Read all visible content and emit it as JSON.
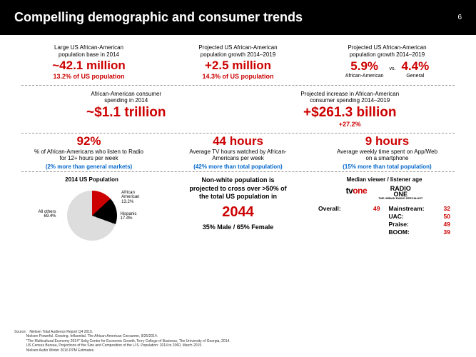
{
  "header": {
    "title": "Compelling demographic and consumer trends",
    "page": "6"
  },
  "row1": [
    {
      "lbl": "Large US African-American\npopulation base in 2014",
      "big": "~42.1 million",
      "sub": "13.2% of US population"
    },
    {
      "lbl": "Projected US African-American\npopulation growth 2014–2019",
      "big": "+2.5 million",
      "sub": "14.3% of US population"
    },
    {
      "lbl": "Projected US African-American\npopulation growth 2014–2019"
    }
  ],
  "growth_compare": {
    "left": {
      "big": "5.9%",
      "sub": "African-American"
    },
    "vs": "vs.",
    "right": {
      "big": "4.4%",
      "sub": "General"
    }
  },
  "row2": [
    {
      "lbl": "African-American consumer\nspending in 2014",
      "big": "~$1.1 trillion"
    },
    {
      "lbl": "Projected increase in African-American\nconsumer spending 2014–2019",
      "big": "+$261.3 billion",
      "sub": "+27.2%"
    }
  ],
  "row3": [
    {
      "big": "92%",
      "lbl": "% of African-Americans who listen to Radio\nfor 12+ hours per week",
      "sub": "(2% more than general markets)"
    },
    {
      "big": "44 hours",
      "lbl": "Average TV hours watched by African-\nAmericans per week",
      "sub": "(42% more than total population)"
    },
    {
      "big": "9 hours",
      "lbl": "Average weekly time spent on App/Web\non a smartphone",
      "sub": "(15% more than total population)"
    }
  ],
  "pie": {
    "title": "2014 US Population",
    "slices": [
      {
        "label": "African\nAmerican",
        "pct": "13.2%",
        "color": "#c00"
      },
      {
        "label": "Hispanic",
        "pct": "17.4%",
        "color": "#000"
      },
      {
        "label": "All others",
        "pct": "69.4%",
        "color": "#ddd"
      }
    ]
  },
  "crossover": {
    "lbl": "Non-white population is\nprojected to cross over >50% of\nthe total US population in",
    "year": "2044",
    "gender": "35% Male / 65% Female"
  },
  "median": {
    "title": "Median viewer / listener age",
    "tvone_left": [
      {
        "k": "Overall:",
        "v": "49"
      }
    ],
    "radio_right": [
      {
        "k": "Mainstream:",
        "v": "32"
      },
      {
        "k": "UAC:",
        "v": "50"
      },
      {
        "k": "Praise:",
        "v": "49"
      },
      {
        "k": "BOOM:",
        "v": "39"
      }
    ]
  },
  "source": {
    "label": "Source:",
    "lines": [
      "Nielsen Total Audience Report Q4 2015.",
      "Nielsen Powerful. Growing. Influential. The African-American Consumer, 9/25/2014.",
      "\"The Multicultural Economy 2014\" Selig Center for Economic Growth, Terry College of Business, The University of Georgia, 2014.",
      "US Census Bureau, Projections of the Size and Composition of the U.S. Population: 2014 to 2060, March 2015.",
      "Nielsen Audio Winter 2016 PPM Estimates."
    ]
  }
}
